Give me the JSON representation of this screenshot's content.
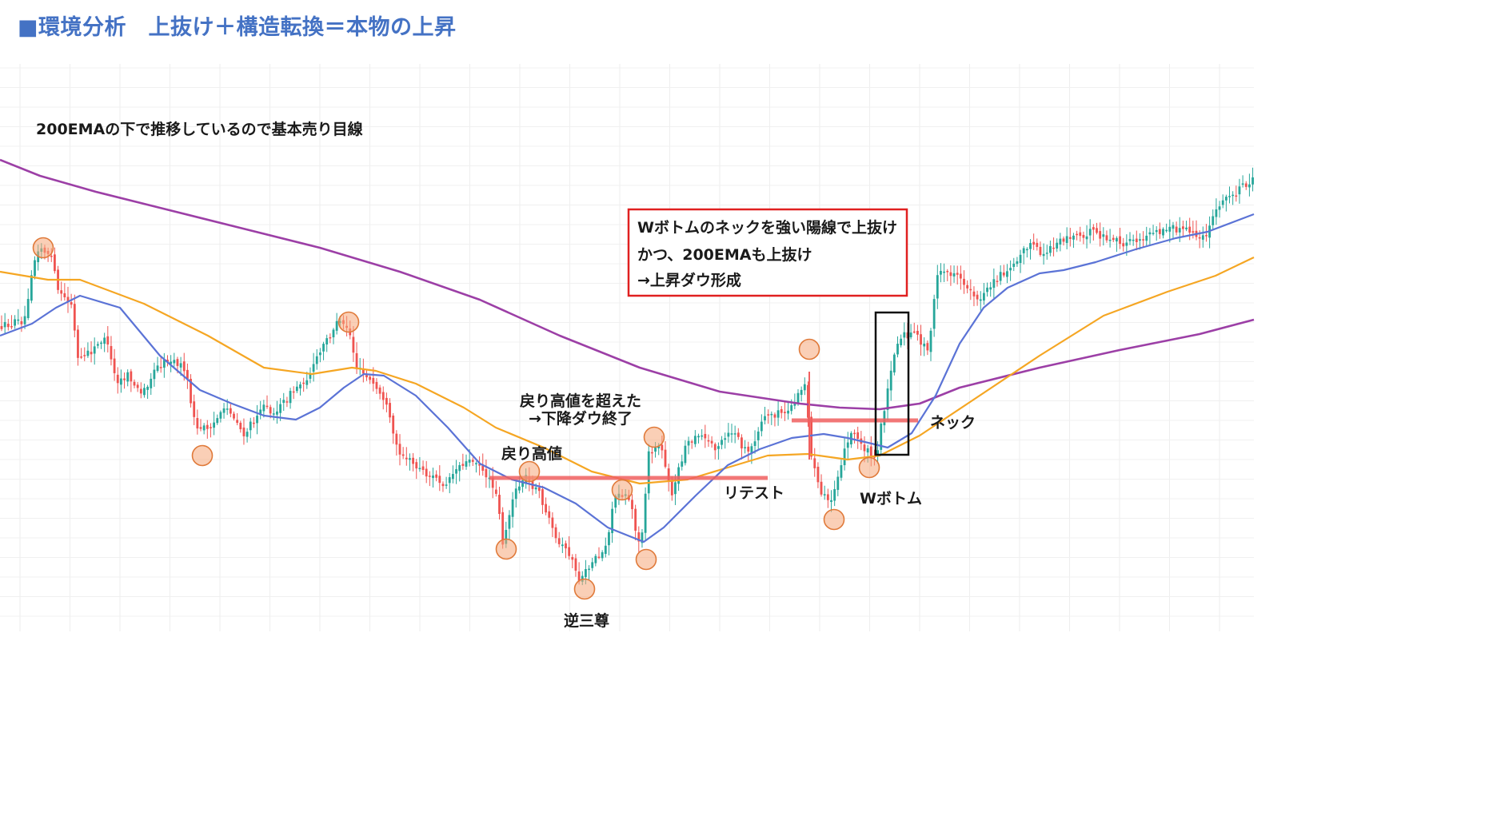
{
  "page": {
    "title": "■環境分析　上抜け＋構造転換＝本物の上昇"
  },
  "chart_data": {
    "type": "candlestick",
    "title": "",
    "xlabel": "",
    "ylabel": "",
    "grid": true,
    "colors": {
      "up": "#26a69a",
      "down": "#ef5350",
      "ema200": "#9c3fa6",
      "ema_mid": "#f5a623",
      "ema_fast": "#5b73d6",
      "level_line": "#f06060",
      "marker": "#f5a87a",
      "title": "#4472c4",
      "callout_border": "#e02020"
    },
    "series": [
      {
        "name": "200EMA",
        "role": "ema200",
        "points": [
          [
            0,
            200
          ],
          [
            50,
            220
          ],
          [
            120,
            240
          ],
          [
            200,
            260
          ],
          [
            300,
            285
          ],
          [
            400,
            310
          ],
          [
            500,
            340
          ],
          [
            600,
            375
          ],
          [
            700,
            420
          ],
          [
            800,
            460
          ],
          [
            900,
            490
          ],
          [
            1000,
            505
          ],
          [
            1050,
            510
          ],
          [
            1100,
            512
          ],
          [
            1150,
            505
          ],
          [
            1200,
            485
          ],
          [
            1300,
            460
          ],
          [
            1400,
            438
          ],
          [
            1500,
            418
          ],
          [
            1568,
            400
          ]
        ]
      },
      {
        "name": "",
        "role": "ema_mid",
        "points": [
          [
            0,
            340
          ],
          [
            60,
            350
          ],
          [
            100,
            350
          ],
          [
            180,
            380
          ],
          [
            260,
            420
          ],
          [
            330,
            460
          ],
          [
            390,
            468
          ],
          [
            440,
            460
          ],
          [
            470,
            464
          ],
          [
            520,
            480
          ],
          [
            580,
            510
          ],
          [
            620,
            535
          ],
          [
            680,
            560
          ],
          [
            740,
            590
          ],
          [
            800,
            605
          ],
          [
            860,
            600
          ],
          [
            910,
            585
          ],
          [
            960,
            570
          ],
          [
            1010,
            568
          ],
          [
            1060,
            575
          ],
          [
            1100,
            570
          ],
          [
            1150,
            545
          ],
          [
            1210,
            505
          ],
          [
            1300,
            445
          ],
          [
            1380,
            395
          ],
          [
            1460,
            365
          ],
          [
            1520,
            345
          ],
          [
            1568,
            322
          ]
        ]
      },
      {
        "name": "",
        "role": "ema_fast",
        "points": [
          [
            0,
            420
          ],
          [
            40,
            405
          ],
          [
            70,
            385
          ],
          [
            100,
            370
          ],
          [
            150,
            385
          ],
          [
            200,
            445
          ],
          [
            250,
            488
          ],
          [
            290,
            505
          ],
          [
            330,
            520
          ],
          [
            370,
            525
          ],
          [
            400,
            510
          ],
          [
            430,
            485
          ],
          [
            455,
            468
          ],
          [
            480,
            470
          ],
          [
            520,
            495
          ],
          [
            560,
            535
          ],
          [
            600,
            580
          ],
          [
            640,
            600
          ],
          [
            680,
            610
          ],
          [
            720,
            630
          ],
          [
            760,
            660
          ],
          [
            805,
            678
          ],
          [
            830,
            660
          ],
          [
            870,
            620
          ],
          [
            910,
            582
          ],
          [
            950,
            562
          ],
          [
            990,
            548
          ],
          [
            1030,
            543
          ],
          [
            1060,
            548
          ],
          [
            1090,
            555
          ],
          [
            1110,
            560
          ],
          [
            1140,
            542
          ],
          [
            1170,
            495
          ],
          [
            1200,
            430
          ],
          [
            1230,
            385
          ],
          [
            1260,
            360
          ],
          [
            1300,
            342
          ],
          [
            1330,
            338
          ],
          [
            1370,
            328
          ],
          [
            1420,
            312
          ],
          [
            1470,
            298
          ],
          [
            1510,
            290
          ],
          [
            1568,
            268
          ]
        ]
      },
      {
        "name": "",
        "role": "price",
        "points": [
          [
            0,
            410
          ],
          [
            20,
            405
          ],
          [
            35,
            400
          ],
          [
            45,
            330
          ],
          [
            55,
            310
          ],
          [
            68,
            320
          ],
          [
            78,
            370
          ],
          [
            95,
            380
          ],
          [
            100,
            450
          ],
          [
            120,
            440
          ],
          [
            135,
            420
          ],
          [
            150,
            480
          ],
          [
            165,
            470
          ],
          [
            180,
            495
          ],
          [
            200,
            460
          ],
          [
            215,
            450
          ],
          [
            235,
            460
          ],
          [
            250,
            540
          ],
          [
            270,
            530
          ],
          [
            290,
            510
          ],
          [
            310,
            545
          ],
          [
            330,
            510
          ],
          [
            350,
            515
          ],
          [
            370,
            490
          ],
          [
            390,
            470
          ],
          [
            410,
            430
          ],
          [
            425,
            405
          ],
          [
            440,
            410
          ],
          [
            450,
            460
          ],
          [
            470,
            480
          ],
          [
            485,
            500
          ],
          [
            500,
            560
          ],
          [
            520,
            580
          ],
          [
            540,
            595
          ],
          [
            560,
            605
          ],
          [
            580,
            580
          ],
          [
            600,
            575
          ],
          [
            615,
            600
          ],
          [
            625,
            615
          ],
          [
            633,
            680
          ],
          [
            645,
            625
          ],
          [
            660,
            595
          ],
          [
            680,
            620
          ],
          [
            700,
            680
          ],
          [
            715,
            690
          ],
          [
            730,
            730
          ],
          [
            745,
            700
          ],
          [
            760,
            690
          ],
          [
            775,
            615
          ],
          [
            790,
            620
          ],
          [
            805,
            690
          ],
          [
            815,
            570
          ],
          [
            830,
            555
          ],
          [
            845,
            620
          ],
          [
            860,
            560
          ],
          [
            880,
            545
          ],
          [
            900,
            560
          ],
          [
            920,
            540
          ],
          [
            940,
            570
          ],
          [
            960,
            520
          ],
          [
            990,
            515
          ],
          [
            1000,
            500
          ],
          [
            1012,
            480
          ],
          [
            1018,
            570
          ],
          [
            1030,
            620
          ],
          [
            1043,
            628
          ],
          [
            1055,
            580
          ],
          [
            1070,
            540
          ],
          [
            1085,
            560
          ],
          [
            1100,
            570
          ],
          [
            1110,
            510
          ],
          [
            1120,
            450
          ],
          [
            1132,
            420
          ],
          [
            1150,
            420
          ],
          [
            1165,
            440
          ],
          [
            1175,
            345
          ],
          [
            1190,
            340
          ],
          [
            1210,
            355
          ],
          [
            1230,
            375
          ],
          [
            1250,
            350
          ],
          [
            1270,
            330
          ],
          [
            1290,
            305
          ],
          [
            1310,
            320
          ],
          [
            1330,
            300
          ],
          [
            1350,
            295
          ],
          [
            1370,
            290
          ],
          [
            1390,
            300
          ],
          [
            1410,
            305
          ],
          [
            1440,
            295
          ],
          [
            1470,
            285
          ],
          [
            1490,
            290
          ],
          [
            1510,
            300
          ],
          [
            1530,
            255
          ],
          [
            1550,
            240
          ],
          [
            1568,
            225
          ]
        ]
      }
    ],
    "annotations": {
      "ema_note": "200EMAの下で推移しているので基本売り目線",
      "callout": [
        "Wボトムのネックを強い陽線で上抜け",
        "かつ、200EMAも上抜け",
        "→上昇ダウ形成"
      ],
      "break_note": [
        "戻り高値を超えた",
        "→下降ダウ終了"
      ],
      "pullback_high": "戻り高値",
      "retest": "リテスト",
      "inv_hs": "逆三尊",
      "neck": "ネック",
      "w_bottom": "Wボトム"
    },
    "markers": [
      [
        54,
        310
      ],
      [
        253,
        570
      ],
      [
        436,
        403
      ],
      [
        633,
        687
      ],
      [
        662,
        590
      ],
      [
        731,
        737
      ],
      [
        778,
        613
      ],
      [
        808,
        700
      ],
      [
        818,
        547
      ],
      [
        1012,
        437
      ],
      [
        1043,
        650
      ],
      [
        1087,
        585
      ]
    ],
    "levels": [
      {
        "label": "戻り高値",
        "x": [
          612,
          960
        ],
        "y": 598
      },
      {
        "label": "ネック",
        "x": [
          990,
          1148
        ],
        "y": 526
      }
    ],
    "breakout_box": {
      "x": [
        1095,
        1136
      ],
      "y": [
        391,
        569
      ]
    }
  }
}
